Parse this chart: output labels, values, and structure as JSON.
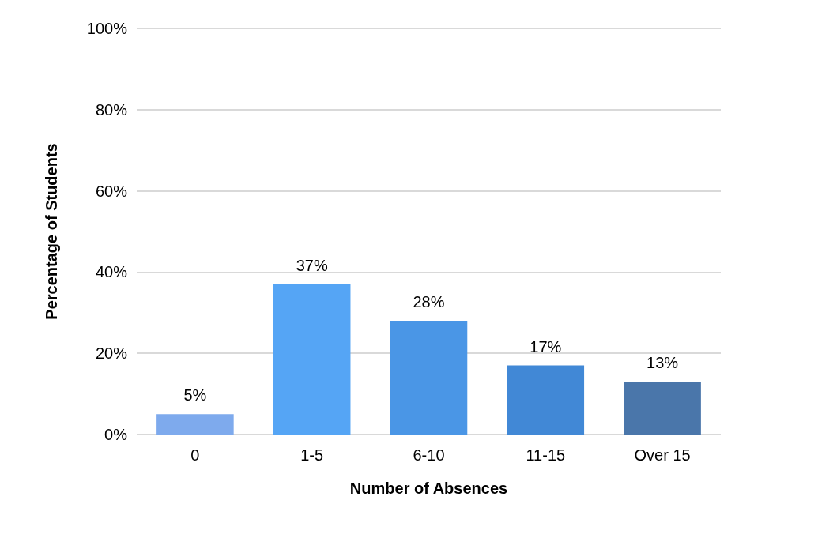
{
  "chart_data": {
    "type": "bar",
    "xlabel": "Number of Absences",
    "ylabel": "Percentage of Students",
    "categories": [
      "0",
      "1-5",
      "6-10",
      "11-15",
      "Over 15"
    ],
    "values": [
      5,
      37,
      28,
      17,
      13
    ],
    "colors": [
      "#7eaaed",
      "#55a5f5",
      "#4a96e6",
      "#4188d6",
      "#4a76aa"
    ],
    "value_labels": [
      "5%",
      "37%",
      "28%",
      "17%",
      "13%"
    ],
    "ylim": [
      0,
      100
    ],
    "yticks": [
      {
        "value": 0,
        "label": "0%"
      },
      {
        "value": 20,
        "label": "20%"
      },
      {
        "value": 40,
        "label": "40%"
      },
      {
        "value": 60,
        "label": "60%"
      },
      {
        "value": 80,
        "label": "80%"
      },
      {
        "value": 100,
        "label": "100%"
      }
    ],
    "grid": "y"
  }
}
